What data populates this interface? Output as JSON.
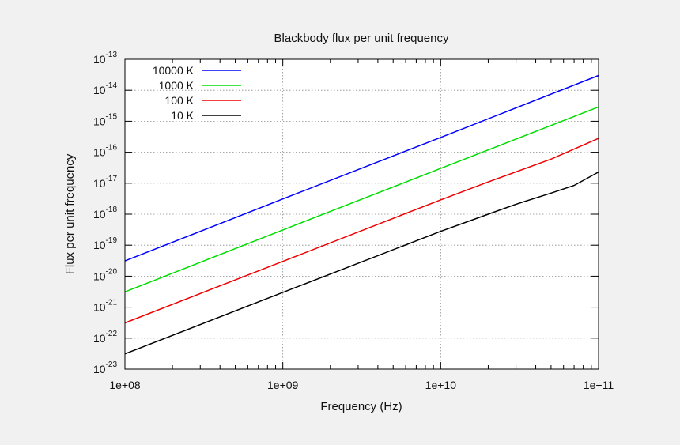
{
  "chart_data": {
    "type": "line",
    "title": "Blackbody flux per unit frequency",
    "xlabel": "Frequency (Hz)",
    "ylabel": "Flux per unit frequency",
    "xscale": "log",
    "yscale": "log",
    "xlim": [
      100000000.0,
      100000000000.0
    ],
    "ylim": [
      1e-23,
      1e-13
    ],
    "grid": true,
    "legend_position": "top-left",
    "x_ticks": [
      {
        "value": 100000000.0,
        "label": "1e+08"
      },
      {
        "value": 1000000000.0,
        "label": "1e+09"
      },
      {
        "value": 10000000000.0,
        "label": "1e+10"
      },
      {
        "value": 100000000000.0,
        "label": "1e+11"
      }
    ],
    "y_ticks": [
      {
        "value": 1e-13,
        "base": "10",
        "exp": "-13"
      },
      {
        "value": 1e-14,
        "base": "10",
        "exp": "-14"
      },
      {
        "value": 1e-15,
        "base": "10",
        "exp": "-15"
      },
      {
        "value": 1e-16,
        "base": "10",
        "exp": "-16"
      },
      {
        "value": 1e-17,
        "base": "10",
        "exp": "-17"
      },
      {
        "value": 1e-18,
        "base": "10",
        "exp": "-18"
      },
      {
        "value": 1e-19,
        "base": "10",
        "exp": "-19"
      },
      {
        "value": 1e-20,
        "base": "10",
        "exp": "-20"
      },
      {
        "value": 1e-21,
        "base": "10",
        "exp": "-21"
      },
      {
        "value": 1e-22,
        "base": "10",
        "exp": "-22"
      },
      {
        "value": 1e-23,
        "base": "10",
        "exp": "-23"
      }
    ],
    "series": [
      {
        "name": "10000 K",
        "color": "#0000ff",
        "x": [
          100000000.0,
          1000000000.0,
          10000000000.0,
          100000000000.0
        ],
        "y": [
          3.1e-20,
          3.1e-18,
          3e-16,
          3e-14
        ]
      },
      {
        "name": "1000 K",
        "color": "#00dd00",
        "x": [
          100000000.0,
          1000000000.0,
          10000000000.0,
          100000000000.0
        ],
        "y": [
          3.1e-21,
          3.1e-19,
          3e-17,
          2.9e-15
        ]
      },
      {
        "name": "100 K",
        "color": "#ee0000",
        "x": [
          100000000.0,
          1000000000.0,
          10000000000.0,
          20000000000.0,
          50000000000.0,
          100000000000.0
        ],
        "y": [
          3.1e-22,
          3e-20,
          2.9e-18,
          1.1e-17,
          6e-17,
          2.8e-16
        ]
      },
      {
        "name": "10 K",
        "color": "#000000",
        "x": [
          100000000.0,
          1000000000.0,
          10000000000.0,
          20000000000.0,
          30000000000.0,
          50000000000.0,
          70000000000.0,
          100000000000.0
        ],
        "y": [
          3.1e-23,
          3e-21,
          2.8e-19,
          1e-18,
          2.1e-18,
          4.8e-18,
          8.5e-18,
          2.3e-17
        ]
      }
    ]
  }
}
